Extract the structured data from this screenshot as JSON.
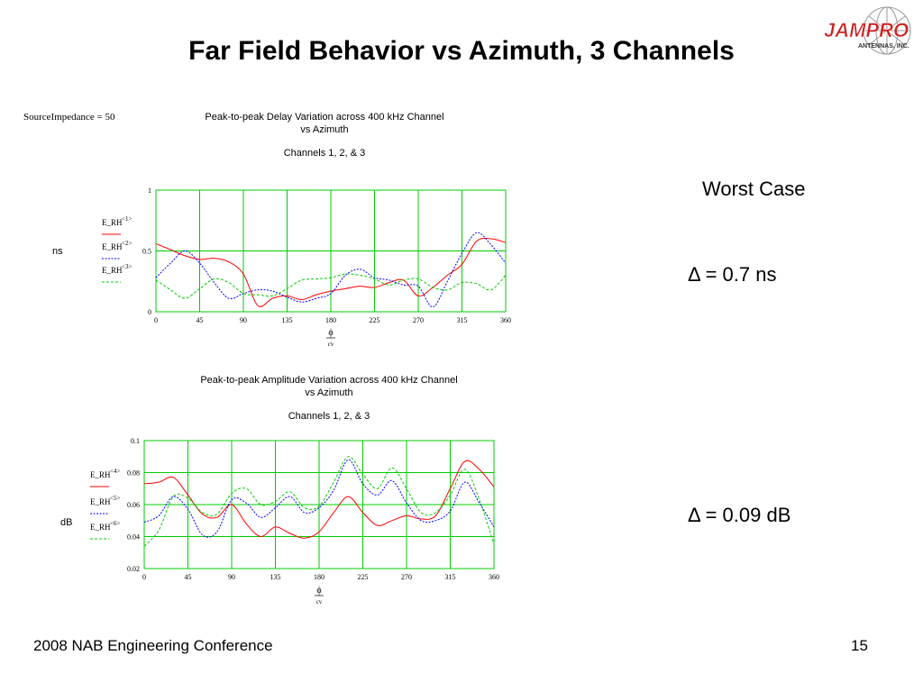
{
  "slide": {
    "title": "Far Field Behavior vs Azimuth, 3 Channels",
    "source_impedance": "SourceImpedance = 50",
    "worst_case": "Worst Case",
    "delta_delay": "Δ = 0.7 ns",
    "delta_amplitude": "Δ = 0.09 dB",
    "footer_left": "2008 NAB Engineering Conference",
    "page_number": "15",
    "logo": {
      "text": "JAMPRO",
      "subtext": "ANTENNAS, INC.",
      "color": "#cc1f1f"
    }
  },
  "colors": {
    "grid": "#00cc00",
    "series1": "#ff0000",
    "series2": "#0000ff",
    "series3": "#00cc00"
  },
  "chart_data": [
    {
      "type": "line",
      "title": "Peak-to-peak Delay Variation  across 400 kHz Channel",
      "title_line2": "vs Azimuth",
      "subtitle": "Channels 1, 2, & 3",
      "ylabel": "ns",
      "xlabel": "ϕ",
      "xlabel_sub": "cv",
      "xlim": [
        0,
        360
      ],
      "ylim": [
        0,
        1
      ],
      "xticks": [
        "0",
        "45",
        "90",
        "135",
        "180",
        "225",
        "270",
        "315",
        "360"
      ],
      "yticks": [
        "0",
        "0.5",
        "1"
      ],
      "x": [
        0,
        15,
        30,
        45,
        60,
        75,
        90,
        105,
        120,
        135,
        150,
        165,
        180,
        195,
        210,
        225,
        240,
        255,
        270,
        285,
        300,
        315,
        330,
        345,
        360
      ],
      "series": [
        {
          "name": "E_RH<1>",
          "values": [
            0.56,
            0.51,
            0.46,
            0.43,
            0.44,
            0.41,
            0.31,
            0.05,
            0.11,
            0.13,
            0.1,
            0.14,
            0.17,
            0.19,
            0.21,
            0.2,
            0.24,
            0.26,
            0.13,
            0.2,
            0.3,
            0.39,
            0.58,
            0.6,
            0.57
          ]
        },
        {
          "name": "E_RH<2>",
          "values": [
            0.28,
            0.4,
            0.5,
            0.4,
            0.24,
            0.11,
            0.15,
            0.18,
            0.17,
            0.12,
            0.08,
            0.11,
            0.15,
            0.3,
            0.35,
            0.28,
            0.26,
            0.22,
            0.21,
            0.04,
            0.25,
            0.48,
            0.65,
            0.55,
            0.4
          ]
        },
        {
          "name": "E_RH<3>",
          "values": [
            0.26,
            0.18,
            0.11,
            0.19,
            0.27,
            0.24,
            0.15,
            0.14,
            0.13,
            0.19,
            0.26,
            0.27,
            0.28,
            0.31,
            0.3,
            0.27,
            0.22,
            0.26,
            0.27,
            0.2,
            0.18,
            0.24,
            0.23,
            0.18,
            0.3
          ]
        }
      ]
    },
    {
      "type": "line",
      "title": "Peak-to-peak Amplitude Variation across 400 kHz Channel",
      "title_line2": "vs Azimuth",
      "subtitle": "Channels 1, 2, & 3",
      "ylabel": "dB",
      "xlabel": "ϕ",
      "xlabel_sub": "cv",
      "xlim": [
        0,
        360
      ],
      "ylim": [
        0.02,
        0.1
      ],
      "xticks": [
        "0",
        "45",
        "90",
        "135",
        "180",
        "225",
        "270",
        "315",
        "360"
      ],
      "yticks": [
        "0.02",
        "0.04",
        "0.06",
        "0.08",
        "0.1"
      ],
      "x": [
        0,
        15,
        30,
        45,
        60,
        75,
        90,
        105,
        120,
        135,
        150,
        165,
        180,
        195,
        210,
        225,
        240,
        255,
        270,
        285,
        300,
        315,
        330,
        345,
        360
      ],
      "series": [
        {
          "name": "E_RH<4>",
          "values": [
            0.073,
            0.074,
            0.077,
            0.066,
            0.054,
            0.052,
            0.06,
            0.048,
            0.04,
            0.046,
            0.042,
            0.039,
            0.043,
            0.055,
            0.065,
            0.055,
            0.047,
            0.05,
            0.053,
            0.051,
            0.053,
            0.07,
            0.087,
            0.082,
            0.071
          ]
        },
        {
          "name": "E_RH<5>",
          "values": [
            0.049,
            0.053,
            0.065,
            0.057,
            0.041,
            0.043,
            0.063,
            0.061,
            0.052,
            0.058,
            0.065,
            0.055,
            0.058,
            0.069,
            0.088,
            0.073,
            0.066,
            0.075,
            0.061,
            0.05,
            0.05,
            0.056,
            0.074,
            0.061,
            0.046
          ]
        },
        {
          "name": "E_RH<6>",
          "values": [
            0.034,
            0.044,
            0.065,
            0.064,
            0.055,
            0.054,
            0.067,
            0.07,
            0.06,
            0.062,
            0.068,
            0.058,
            0.059,
            0.074,
            0.09,
            0.079,
            0.07,
            0.083,
            0.07,
            0.055,
            0.055,
            0.066,
            0.082,
            0.063,
            0.035
          ]
        }
      ]
    }
  ]
}
